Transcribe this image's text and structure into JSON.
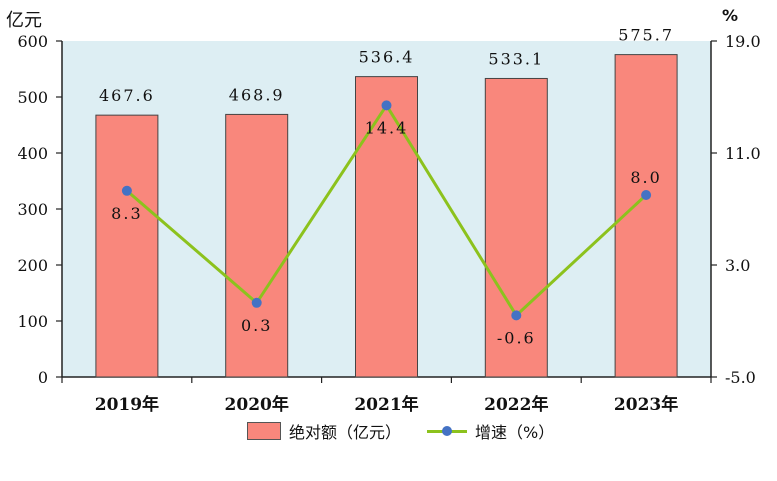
{
  "chart_data": {
    "type": "bar",
    "categories": [
      "2019年",
      "2020年",
      "2021年",
      "2022年",
      "2023年"
    ],
    "series": [
      {
        "name": "绝对额（亿元）",
        "type": "bar",
        "axis": "left",
        "values": [
          467.6,
          468.9,
          536.4,
          533.1,
          575.7
        ],
        "color": "#f9877c"
      },
      {
        "name": "增速（%）",
        "type": "line",
        "axis": "right",
        "values": [
          8.3,
          0.3,
          14.4,
          -0.6,
          8.0
        ],
        "color": "#8cc21d",
        "marker_color": "#4472c4"
      }
    ],
    "left_axis": {
      "unit": "亿元",
      "min": 0,
      "max": 600,
      "ticks": [
        "0",
        "100",
        "200",
        "300",
        "400",
        "500",
        "600"
      ]
    },
    "right_axis": {
      "unit": "%",
      "min": -5.0,
      "max": 19.0,
      "ticks": [
        "-5.0",
        "3.0",
        "11.0",
        "19.0"
      ]
    },
    "bar_labels": [
      "467.6",
      "468.9",
      "536.4",
      "533.1",
      "575.7"
    ],
    "line_labels": [
      "8.3",
      "0.3",
      "14.4",
      "-0.6",
      "8.0"
    ],
    "plot_background": "#ddeef3",
    "legend_position": "bottom"
  }
}
